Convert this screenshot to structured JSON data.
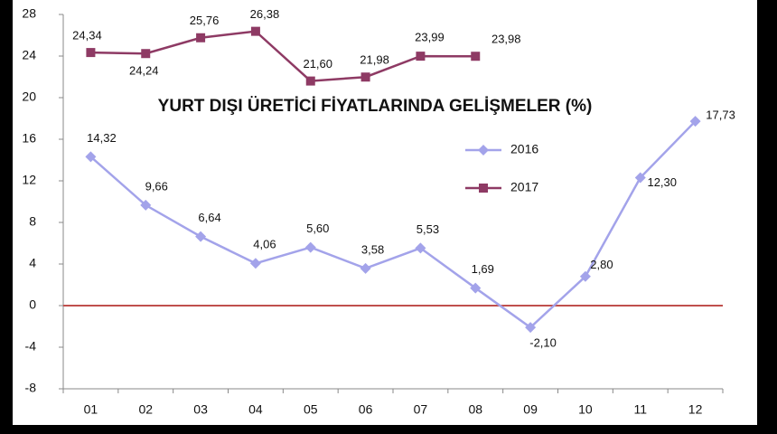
{
  "chart_data": {
    "type": "line",
    "title": "YURT DIŞI ÜRETİCİ FİYATLARINDA GELİŞMELER (%)",
    "categories": [
      "01",
      "02",
      "03",
      "04",
      "05",
      "06",
      "07",
      "08",
      "09",
      "10",
      "11",
      "12"
    ],
    "series": [
      {
        "name": "2016",
        "color": "#a3a3ea",
        "marker": "diamond",
        "values": [
          14.32,
          9.66,
          6.64,
          4.06,
          5.6,
          3.58,
          5.53,
          1.69,
          -2.1,
          2.8,
          12.3,
          17.73
        ],
        "value_labels": [
          "14,32",
          "9,66",
          "6,64",
          "4,06",
          "5,60",
          "3,58",
          "5,53",
          "1,69",
          "-2,10",
          "2,80",
          "12,30",
          "17,73"
        ]
      },
      {
        "name": "2017",
        "color": "#8e3a64",
        "marker": "square",
        "values": [
          24.34,
          24.24,
          25.76,
          26.38,
          21.6,
          21.98,
          23.99,
          23.98,
          null,
          null,
          null,
          null
        ],
        "value_labels": [
          "24,34",
          "24,24",
          "25,76",
          "26,38",
          "21,60",
          "21,98",
          "23,99",
          "23,98",
          null,
          null,
          null,
          null
        ]
      }
    ],
    "ylim": [
      -8,
      28
    ],
    "yticks": [
      -8,
      -4,
      0,
      4,
      8,
      12,
      16,
      20,
      24,
      28
    ],
    "zero_line_color": "#c0504d",
    "grid": false
  }
}
